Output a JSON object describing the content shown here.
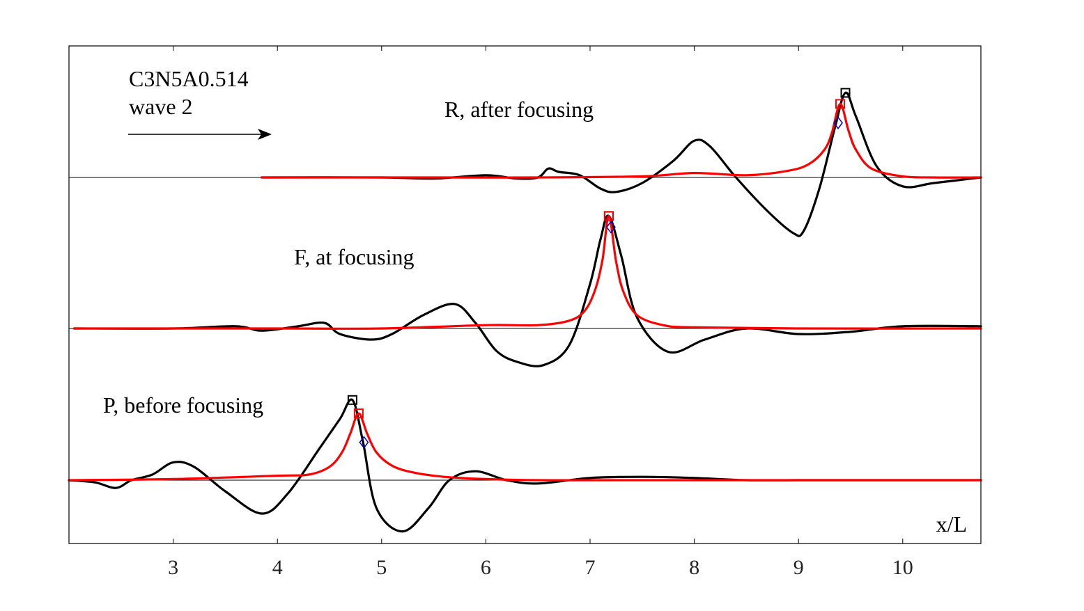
{
  "chart_data": {
    "type": "line",
    "title": "",
    "xlabel": "x/L",
    "ylabel": "",
    "xlim": [
      2.0,
      10.75
    ],
    "xticks": [
      3,
      4,
      5,
      6,
      7,
      8,
      9,
      10
    ],
    "grid": false,
    "annotations": {
      "case": "C3N5A0.514",
      "wave": "wave 2",
      "direction": "arrow pointing right (propagation direction)"
    },
    "colors": {
      "measured": "#000000",
      "model": "#ff0000",
      "diamond": "#0000cc",
      "baseline": "#000000",
      "frame": "#000000"
    },
    "panels": [
      {
        "id": "R",
        "label": "R, after focusing",
        "baseline_start_x": 3.85,
        "black_peak_marker": [
          9.45,
          0.76
        ],
        "red_peak_marker": [
          9.4,
          0.66
        ],
        "blue_diamond_marker": [
          9.38,
          0.49
        ],
        "series": [
          {
            "name": "measured",
            "color": "#000000",
            "x": [
              3.85,
              5.0,
              5.5,
              6.0,
              6.3,
              6.5,
              6.6,
              6.7,
              6.9,
              7.1,
              7.25,
              7.5,
              7.8,
              8.0,
              8.15,
              8.4,
              8.7,
              8.95,
              9.05,
              9.2,
              9.35,
              9.45,
              9.55,
              9.75,
              10.0,
              10.3,
              10.75
            ],
            "y": [
              0,
              0,
              -0.01,
              0.02,
              -0.01,
              0.0,
              0.08,
              0.05,
              0.02,
              -0.1,
              -0.13,
              -0.05,
              0.15,
              0.33,
              0.28,
              0.0,
              -0.3,
              -0.5,
              -0.48,
              -0.1,
              0.45,
              0.76,
              0.55,
              0.1,
              -0.08,
              -0.05,
              0.0
            ]
          },
          {
            "name": "model",
            "color": "#ff0000",
            "x": [
              3.85,
              5.5,
              6.5,
              7.5,
              8.0,
              8.5,
              8.9,
              9.1,
              9.25,
              9.32,
              9.4,
              9.48,
              9.55,
              9.7,
              10.0,
              10.3,
              10.75
            ],
            "y": [
              0,
              0.0,
              0.0,
              0.01,
              0.04,
              0.02,
              0.06,
              0.12,
              0.25,
              0.4,
              0.66,
              0.42,
              0.25,
              0.08,
              0.01,
              0.0,
              0.0
            ]
          }
        ]
      },
      {
        "id": "F",
        "label": "F, at focusing",
        "black_peak_marker": [
          7.18,
          1.01
        ],
        "red_peak_marker": [
          7.18,
          1.01
        ],
        "blue_diamond_marker": [
          7.2,
          0.91
        ],
        "series": [
          {
            "name": "measured",
            "color": "#000000",
            "x": [
              2.05,
              3.0,
              3.6,
              3.85,
              4.2,
              4.45,
              4.6,
              4.9,
              5.1,
              5.4,
              5.7,
              5.9,
              6.1,
              6.3,
              6.55,
              6.8,
              7.0,
              7.1,
              7.18,
              7.3,
              7.45,
              7.75,
              8.1,
              8.5,
              9.0,
              9.5,
              10.0,
              10.75
            ],
            "y": [
              0,
              0.0,
              0.02,
              -0.02,
              0.02,
              0.05,
              -0.05,
              -0.1,
              -0.05,
              0.12,
              0.22,
              0.05,
              -0.2,
              -0.3,
              -0.33,
              -0.15,
              0.4,
              0.8,
              1.01,
              0.65,
              0.1,
              -0.21,
              -0.1,
              0.0,
              -0.05,
              -0.03,
              0.02,
              0.02
            ]
          },
          {
            "name": "model",
            "color": "#ff0000",
            "x": [
              2.05,
              4.0,
              5.0,
              6.0,
              6.5,
              6.8,
              6.95,
              7.05,
              7.12,
              7.18,
              7.25,
              7.32,
              7.45,
              7.7,
              8.0,
              9.0,
              10.75
            ],
            "y": [
              0,
              0.0,
              0.0,
              0.03,
              0.03,
              0.07,
              0.16,
              0.35,
              0.62,
              1.01,
              0.6,
              0.33,
              0.12,
              0.03,
              0.01,
              0.0,
              0.0
            ]
          }
        ]
      },
      {
        "id": "P",
        "label": "P, before focusing",
        "black_peak_marker": [
          4.72,
          0.72
        ],
        "red_peak_marker": [
          4.78,
          0.6
        ],
        "blue_diamond_marker": [
          4.83,
          0.34
        ],
        "series": [
          {
            "name": "measured",
            "color": "#000000",
            "x": [
              2.0,
              2.25,
              2.45,
              2.6,
              2.8,
              3.0,
              3.2,
              3.5,
              3.85,
              4.1,
              4.4,
              4.6,
              4.72,
              4.82,
              4.95,
              5.2,
              5.45,
              5.65,
              5.9,
              6.2,
              6.5,
              7.0,
              7.5,
              8.0,
              8.5,
              9.0,
              9.5,
              10.0,
              10.75
            ],
            "y": [
              0,
              -0.02,
              -0.07,
              0.0,
              0.05,
              0.16,
              0.12,
              -0.1,
              -0.3,
              -0.12,
              0.28,
              0.55,
              0.72,
              0.35,
              -0.25,
              -0.46,
              -0.25,
              0.0,
              0.08,
              0.0,
              -0.03,
              0.02,
              0.03,
              0.02,
              0.0,
              0.0,
              0.0,
              0.0,
              0.0
            ]
          },
          {
            "name": "model",
            "color": "#ff0000",
            "x": [
              2.0,
              3.0,
              4.0,
              4.3,
              4.5,
              4.62,
              4.7,
              4.78,
              4.86,
              4.95,
              5.1,
              5.3,
              5.6,
              6.0,
              6.5,
              7.5,
              10.75
            ],
            "y": [
              0,
              0.01,
              0.04,
              0.05,
              0.12,
              0.25,
              0.42,
              0.6,
              0.42,
              0.25,
              0.13,
              0.07,
              0.03,
              0.01,
              0.0,
              0.0,
              0.0
            ]
          }
        ]
      }
    ]
  }
}
